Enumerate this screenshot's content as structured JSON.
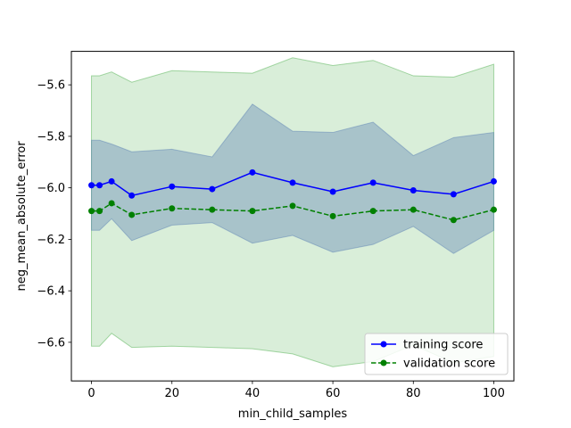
{
  "chart_data": {
    "type": "line",
    "title": "",
    "xlabel": "min_child_samples",
    "ylabel": "neg_mean_absolute_error",
    "xlim": [
      -5,
      105
    ],
    "ylim": [
      -6.75,
      -5.47
    ],
    "xticks": [
      0,
      20,
      40,
      60,
      80,
      100
    ],
    "yticks": [
      -6.6,
      -6.4,
      -6.2,
      -6.0,
      -5.8,
      -5.6
    ],
    "xtick_labels": [
      "0",
      "20",
      "40",
      "60",
      "80",
      "100"
    ],
    "ytick_labels": [
      "−6.6",
      "−6.4",
      "−6.2",
      "−6.0",
      "−5.8",
      "−5.6"
    ],
    "grid": false,
    "legend_position": "lower-right",
    "x": [
      0,
      2,
      5,
      10,
      20,
      30,
      40,
      50,
      60,
      70,
      80,
      90,
      100
    ],
    "series": [
      {
        "name": "training score",
        "color": "#0000ff",
        "linestyle": "solid",
        "marker": "circle",
        "values": [
          -5.99,
          -5.99,
          -5.975,
          -6.03,
          -5.995,
          -6.005,
          -5.94,
          -5.98,
          -6.015,
          -5.98,
          -6.01,
          -6.025,
          -5.975
        ],
        "band_upper": [
          -5.815,
          -5.815,
          -5.83,
          -5.86,
          -5.85,
          -5.88,
          -5.675,
          -5.78,
          -5.785,
          -5.745,
          -5.875,
          -5.805,
          -5.785
        ],
        "band_lower": [
          -6.165,
          -6.165,
          -6.12,
          -6.205,
          -6.145,
          -6.135,
          -6.215,
          -6.185,
          -6.25,
          -6.22,
          -6.15,
          -6.255,
          -6.165
        ],
        "band_color": "#4c72b0"
      },
      {
        "name": "validation score",
        "color": "#008000",
        "linestyle": "dashed",
        "marker": "circle",
        "values": [
          -6.09,
          -6.09,
          -6.06,
          -6.105,
          -6.08,
          -6.085,
          -6.09,
          -6.07,
          -6.11,
          -6.09,
          -6.085,
          -6.125,
          -6.085
        ],
        "band_upper": [
          -5.565,
          -5.565,
          -5.55,
          -5.59,
          -5.545,
          -5.55,
          -5.555,
          -5.495,
          -5.525,
          -5.505,
          -5.565,
          -5.57,
          -5.52
        ],
        "band_lower": [
          -6.615,
          -6.615,
          -6.565,
          -6.62,
          -6.615,
          -6.62,
          -6.625,
          -6.645,
          -6.695,
          -6.675,
          -6.61,
          -6.68,
          -6.655
        ],
        "band_color": "#2ca02c"
      }
    ]
  }
}
